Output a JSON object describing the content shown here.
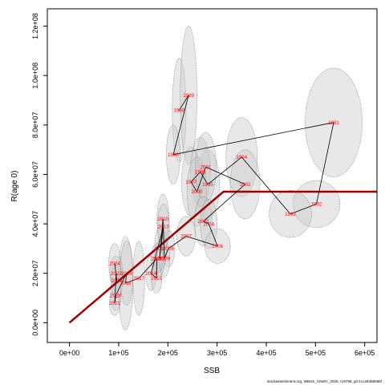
{
  "chart_data": {
    "type": "scatter",
    "xlabel": "SSB",
    "ylabel": "R(age 0)",
    "xlim": [
      -45000,
      625000
    ],
    "ylim": [
      -8000000,
      127000000
    ],
    "x_ticks": [
      0,
      100000,
      200000,
      300000,
      400000,
      500000,
      600000
    ],
    "x_tick_labels": [
      "0e+00",
      "1e+05",
      "2e+05",
      "3e+05",
      "4e+05",
      "5e+05",
      "6e+05"
    ],
    "y_ticks": [
      0,
      20000000,
      40000000,
      60000000,
      80000000,
      100000000,
      120000000
    ],
    "y_tick_labels": [
      "0.0e+00",
      "2.0e+07",
      "4.0e+07",
      "6.0e+07",
      "8.0e+07",
      "1.0e+08",
      "1.2e+08"
    ],
    "grid": false,
    "legend": "none",
    "colors": {
      "stock_recruit_curve": "#a00000",
      "year_label": "#ff0000",
      "trajectory": "#000000",
      "uncertainty_fill": "#c8c8c8",
      "uncertainty_border": "#808080"
    },
    "stock_recruit_curve": {
      "type": "hockey-stick",
      "x": [
        0,
        313000,
        625000
      ],
      "y": [
        0,
        53000000,
        53000000
      ]
    },
    "points": [
      {
        "year": "1988",
        "ssb": 223000,
        "rec": 86000000,
        "sd_x": 14000,
        "sd_y": 21000000
      },
      {
        "year": "1989",
        "ssb": 242000,
        "rec": 92000000,
        "sd_x": 17000,
        "sd_y": 28000000
      },
      {
        "year": "1990",
        "ssb": 211000,
        "rec": 68000000,
        "sd_x": 14000,
        "sd_y": 12000000
      },
      {
        "year": "1991",
        "ssb": 537000,
        "rec": 81000000,
        "sd_x": 58000,
        "sd_y": 22000000
      },
      {
        "year": "1992",
        "ssb": 502000,
        "rec": 48000000,
        "sd_x": 48000,
        "sd_y": 9500000
      },
      {
        "year": "1993",
        "ssb": 449000,
        "rec": 44000000,
        "sd_x": 43000,
        "sd_y": 9500000
      },
      {
        "year": "1994",
        "ssb": 350000,
        "rec": 67000000,
        "sd_x": 32000,
        "sd_y": 16000000
      },
      {
        "year": "1995",
        "ssb": 281000,
        "rec": 56000000,
        "sd_x": 24000,
        "sd_y": 14000000
      },
      {
        "year": "1996",
        "ssb": 266000,
        "rec": 61000000,
        "sd_x": 20000,
        "sd_y": 14000000
      },
      {
        "year": "1997",
        "ssb": 247000,
        "rec": 57000000,
        "sd_x": 19000,
        "sd_y": 14000000
      },
      {
        "year": "2000",
        "ssb": 259000,
        "rec": 53000000,
        "sd_x": 20000,
        "sd_y": 14000000
      },
      {
        "year": "2001",
        "ssb": 277000,
        "rec": 63000000,
        "sd_x": 21000,
        "sd_y": 14000000
      },
      {
        "year": "2002",
        "ssb": 357000,
        "rec": 56000000,
        "sd_x": 30000,
        "sd_y": 14000000
      },
      {
        "year": "2003",
        "ssb": 272000,
        "rec": 41000000,
        "sd_x": 18000,
        "sd_y": 10000000
      },
      {
        "year": "2004",
        "ssb": 283000,
        "rec": 40000000,
        "sd_x": 17000,
        "sd_y": 10000000
      },
      {
        "year": "2006",
        "ssb": 301000,
        "rec": 31000000,
        "sd_x": 26000,
        "sd_y": 7000000
      },
      {
        "year": "2007",
        "ssb": 237000,
        "rec": 35000000,
        "sd_x": 19000,
        "sd_y": 8000000
      },
      {
        "year": "2008",
        "ssb": 201000,
        "rec": 30000000,
        "sd_x": 13000,
        "sd_y": 7500000
      },
      {
        "year": "2009",
        "ssb": 193000,
        "rec": 26000000,
        "sd_x": 11000,
        "sd_y": 7500000
      },
      {
        "year": "2010",
        "ssb": 190000,
        "rec": 42000000,
        "sd_x": 12000,
        "sd_y": 10000000
      },
      {
        "year": "2011",
        "ssb": 185000,
        "rec": 30000000,
        "sd_x": 12000,
        "sd_y": 9000000
      },
      {
        "year": "2012",
        "ssb": 183000,
        "rec": 26000000,
        "sd_x": 11000,
        "sd_y": 7000000
      },
      {
        "year": "2013",
        "ssb": 191000,
        "rec": 39000000,
        "sd_x": 12000,
        "sd_y": 9000000
      },
      {
        "year": "2014",
        "ssb": 166000,
        "rec": 20000000,
        "sd_x": 11000,
        "sd_y": 7000000
      },
      {
        "year": "2015",
        "ssb": 177000,
        "rec": 18000000,
        "sd_x": 11000,
        "sd_y": 6000000
      },
      {
        "year": "2016",
        "ssb": 178000,
        "rec": 26000000,
        "sd_x": 12000,
        "sd_y": 6000000
      },
      {
        "year": "2017",
        "ssb": 141000,
        "rec": 18000000,
        "sd_x": 12000,
        "sd_y": 15000000
      },
      {
        "year": "2018",
        "ssb": 114000,
        "rec": 16000000,
        "sd_x": 15000,
        "sd_y": 19000000
      },
      {
        "year": "2019",
        "ssb": 116000,
        "rec": 20000000,
        "sd_x": 13000,
        "sd_y": 13000000
      },
      {
        "year": "2020",
        "ssb": 94000,
        "rec": 11000000,
        "sd_x": 11000,
        "sd_y": 6000000
      },
      {
        "year": "2021",
        "ssb": 92000,
        "rec": 8000000,
        "sd_x": 11000,
        "sd_y": 5000000
      },
      {
        "year": "2022",
        "ssb": 95000,
        "rec": 20000000,
        "sd_x": 13000,
        "sd_y": 7000000
      },
      {
        "year": "2023",
        "ssb": 96000,
        "rec": 17000000,
        "sd_x": 12000,
        "sd_y": 7000000
      },
      {
        "year": "2024",
        "ssb": 92000,
        "rec": 24000000,
        "sd_x": 12000,
        "sd_y": 8000000
      }
    ]
  },
  "footnote": "stockassessment.org, WBSS_HAWG_2026, r19798, git:1cc464b8086f"
}
